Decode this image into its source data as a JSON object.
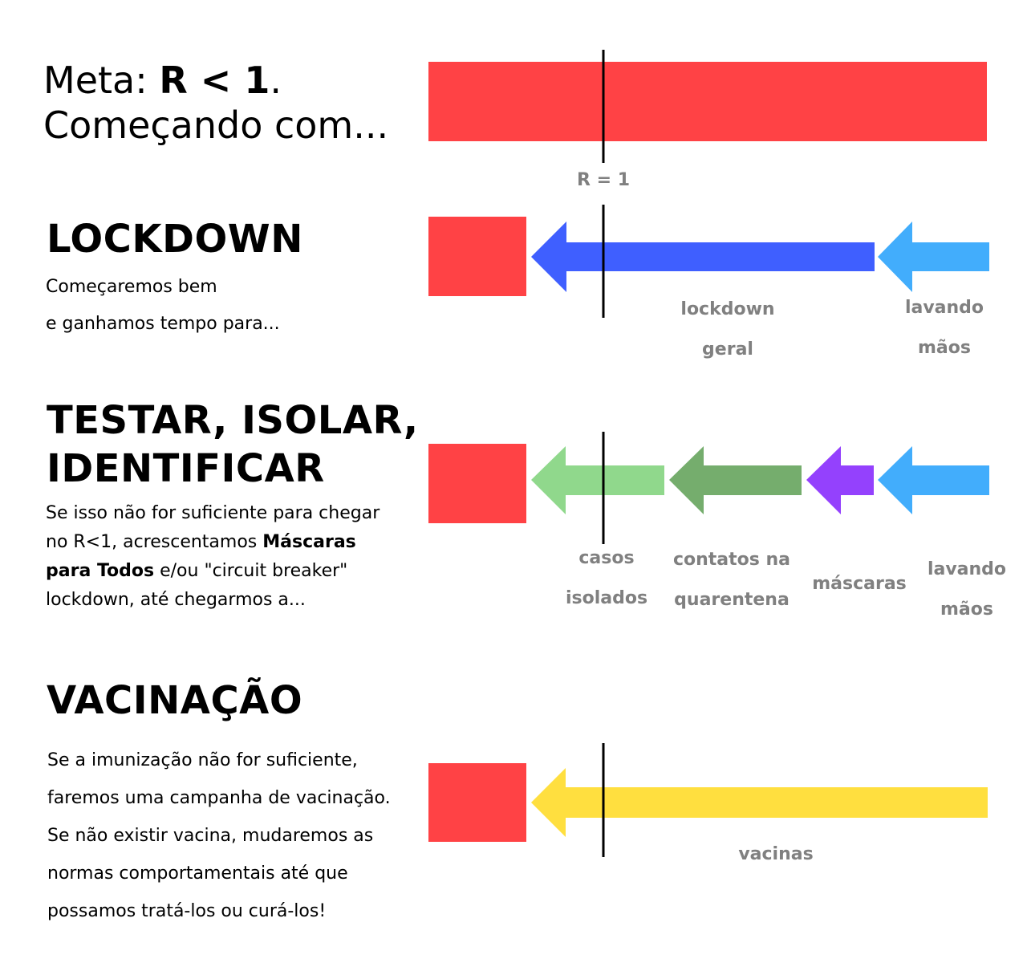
{
  "title": {
    "prefix": "Meta: ",
    "strong": "R < 1",
    "suffix": ".",
    "line2": "Começando com..."
  },
  "colors": {
    "bar_red": "#ff4245",
    "lockdown_blue": "#3f5fff",
    "hands_blue": "#42adfc",
    "isolated_green": "#90d88c",
    "contacts_green": "#75ad6d",
    "masks_purple": "#9441fd",
    "vaccine_yellow": "#ffdf3f",
    "label_gray": "#808080",
    "r_line": "#000000"
  },
  "r_marker_label": "R = 1",
  "sections": {
    "lockdown": {
      "heading": "LOCKDOWN",
      "lines": [
        "Começaremos bem",
        "e ganhamos tempo para..."
      ],
      "labels": {
        "lockdown": [
          "lockdown",
          "geral"
        ],
        "hands": [
          "lavando",
          "mãos"
        ]
      }
    },
    "testing": {
      "heading_lines": [
        "TESTAR, ISOLAR,",
        "IDENTIFICAR"
      ],
      "body": {
        "l1": "Se isso não for suficiente para chegar",
        "l2a": "no R<1, acrescentamos ",
        "l2b": "Máscaras",
        "l3a": "para Todos",
        "l3b": " e/ou \"circuit breaker\"",
        "l4": "lockdown, até chegarmos a..."
      },
      "labels": {
        "isolated": [
          "casos",
          "isolados"
        ],
        "contacts": [
          "contatos na",
          "quarentena"
        ],
        "masks": "máscaras",
        "hands": [
          "lavando",
          "mãos"
        ]
      }
    },
    "vaccination": {
      "heading": "VACINAÇÃO",
      "lines": [
        "Se a imunização não for suficiente,",
        "faremos uma campanha de vacinação.",
        "Se não existir vacina, mudaremos as",
        "normas comportamentais até que",
        "possamos tratá-los ou curá-los!"
      ],
      "labels": {
        "vaccines": "vacinas"
      }
    }
  }
}
